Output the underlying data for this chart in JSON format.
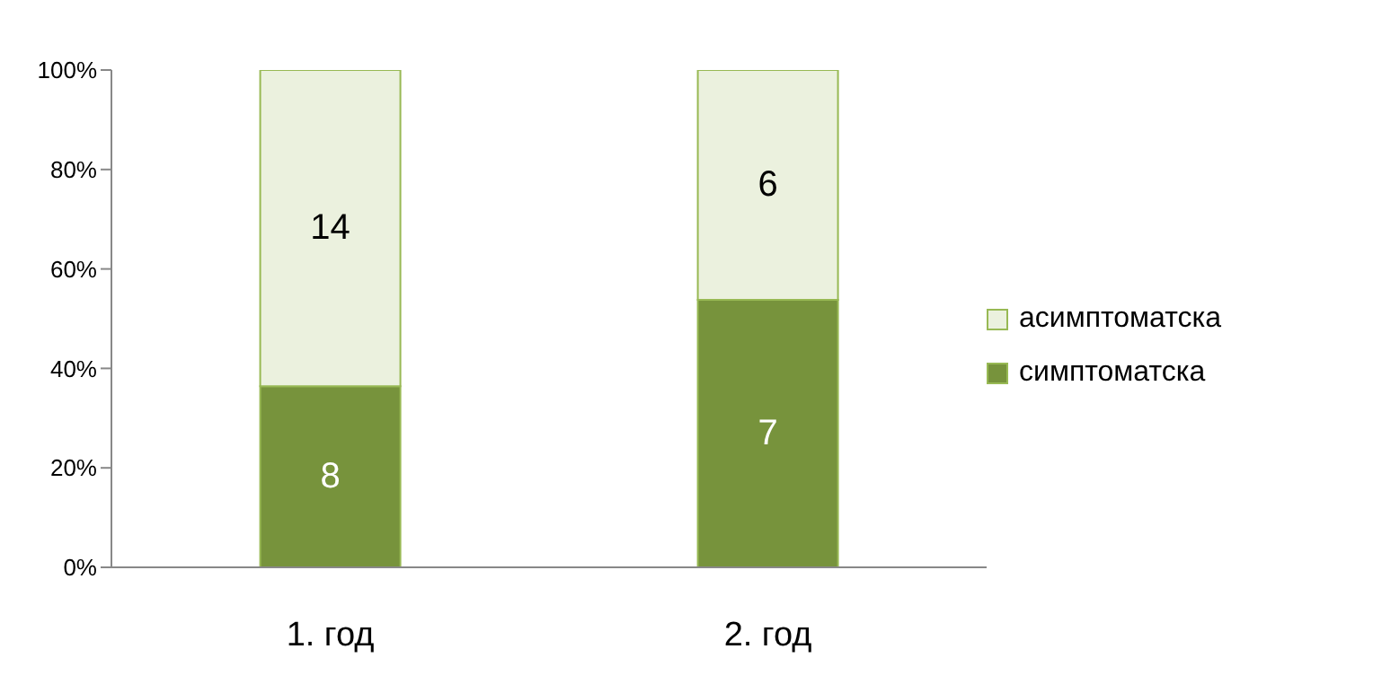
{
  "chart_data": {
    "type": "bar",
    "stacked": true,
    "categories": [
      "1. год",
      "2. год"
    ],
    "series": [
      {
        "name": "симптоматска",
        "color": "#77933c",
        "values": [
          36.4,
          53.8
        ]
      },
      {
        "name": "асимптоматска",
        "color": "#ebf1de",
        "values": [
          63.6,
          46.2
        ]
      }
    ],
    "annotations": [
      "8",
      "14",
      "7",
      "6"
    ],
    "ylim": [
      0,
      100
    ],
    "yticks": [
      {
        "value": 0,
        "label": "0%"
      },
      {
        "value": 20,
        "label": "20%"
      },
      {
        "value": 40,
        "label": "40%"
      },
      {
        "value": 60,
        "label": "60%"
      },
      {
        "value": 80,
        "label": "80%"
      },
      {
        "value": 100,
        "label": "100%"
      }
    ],
    "grid": false,
    "legend": "right"
  }
}
